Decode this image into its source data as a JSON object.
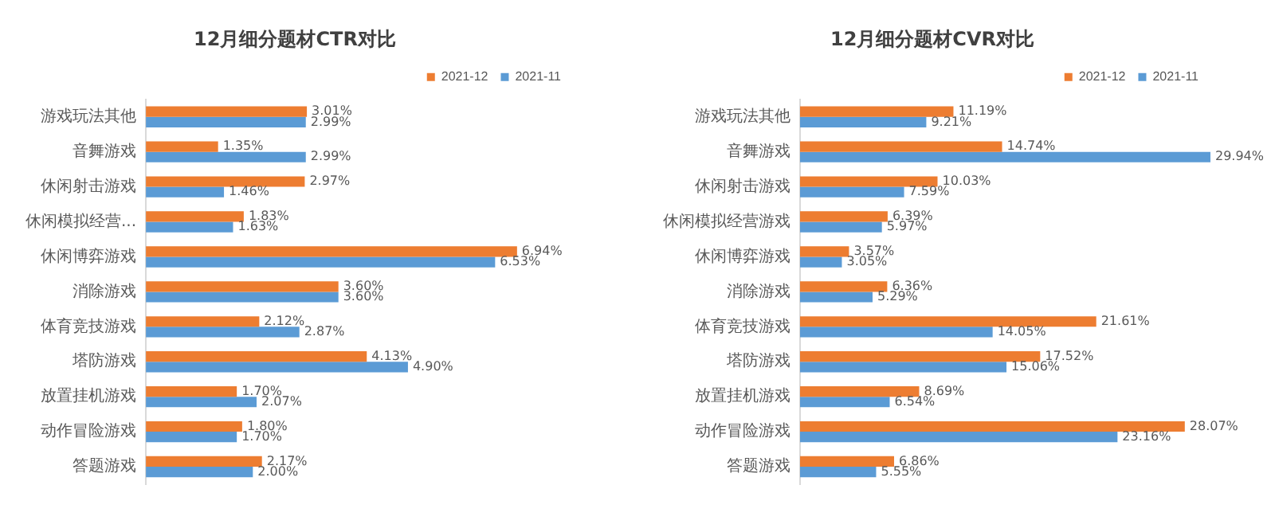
{
  "chart_data": [
    {
      "type": "bar",
      "orientation": "horizontal",
      "title": "12月细分题材CTR对比",
      "legend": "top right",
      "tick_labels": "y",
      "categories": [
        "游戏玩法其他",
        "音舞游戏",
        "休闲射击游戏",
        "休闲模拟经营...",
        "休闲博弈游戏",
        "消除游戏",
        "体育竞技游戏",
        "塔防游戏",
        "放置挂机游戏",
        "动作冒险游戏",
        "答题游戏"
      ],
      "series": [
        {
          "name": "2021-12",
          "color": "#ed7d31",
          "values": [
            3.01,
            1.35,
            2.97,
            1.83,
            6.94,
            3.6,
            2.12,
            4.13,
            1.7,
            1.8,
            2.17
          ],
          "value_labels": [
            "3.01%",
            "1.35%",
            "2.97%",
            "1.83%",
            "6.94%",
            "3.60%",
            "2.12%",
            "4.13%",
            "1.70%",
            "1.80%",
            "2.17%"
          ]
        },
        {
          "name": "2021-11",
          "color": "#5b9bd5",
          "values": [
            2.99,
            2.99,
            1.46,
            1.63,
            6.53,
            3.6,
            2.87,
            4.9,
            2.07,
            1.7,
            2.0
          ],
          "value_labels": [
            "2.99%",
            "2.99%",
            "1.46%",
            "1.63%",
            "6.53%",
            "3.60%",
            "2.87%",
            "4.90%",
            "2.07%",
            "1.70%",
            "2.00%"
          ]
        }
      ]
    },
    {
      "type": "bar",
      "orientation": "horizontal",
      "title": "12月细分题材CVR对比",
      "legend": "top right",
      "tick_labels": "y",
      "categories": [
        "游戏玩法其他",
        "音舞游戏",
        "休闲射击游戏",
        "休闲模拟经营游戏",
        "休闲博弈游戏",
        "消除游戏",
        "体育竞技游戏",
        "塔防游戏",
        "放置挂机游戏",
        "动作冒险游戏",
        "答题游戏"
      ],
      "series": [
        {
          "name": "2021-12",
          "color": "#ed7d31",
          "values": [
            11.19,
            14.74,
            10.03,
            6.39,
            3.57,
            6.36,
            21.61,
            17.52,
            8.69,
            28.07,
            6.86
          ],
          "value_labels": [
            "11.19%",
            "14.74%",
            "10.03%",
            "6.39%",
            "3.57%",
            "6.36%",
            "21.61%",
            "17.52%",
            "8.69%",
            "28.07%",
            "6.86%"
          ]
        },
        {
          "name": "2021-11",
          "color": "#5b9bd5",
          "values": [
            9.21,
            29.94,
            7.59,
            5.97,
            3.05,
            5.29,
            14.05,
            15.06,
            6.54,
            23.16,
            5.55
          ],
          "value_labels": [
            "9.21%",
            "29.94%",
            "7.59%",
            "5.97%",
            "3.05%",
            "5.29%",
            "14.05%",
            "15.06%",
            "6.54%",
            "23.16%",
            "5.55%"
          ]
        }
      ]
    }
  ]
}
